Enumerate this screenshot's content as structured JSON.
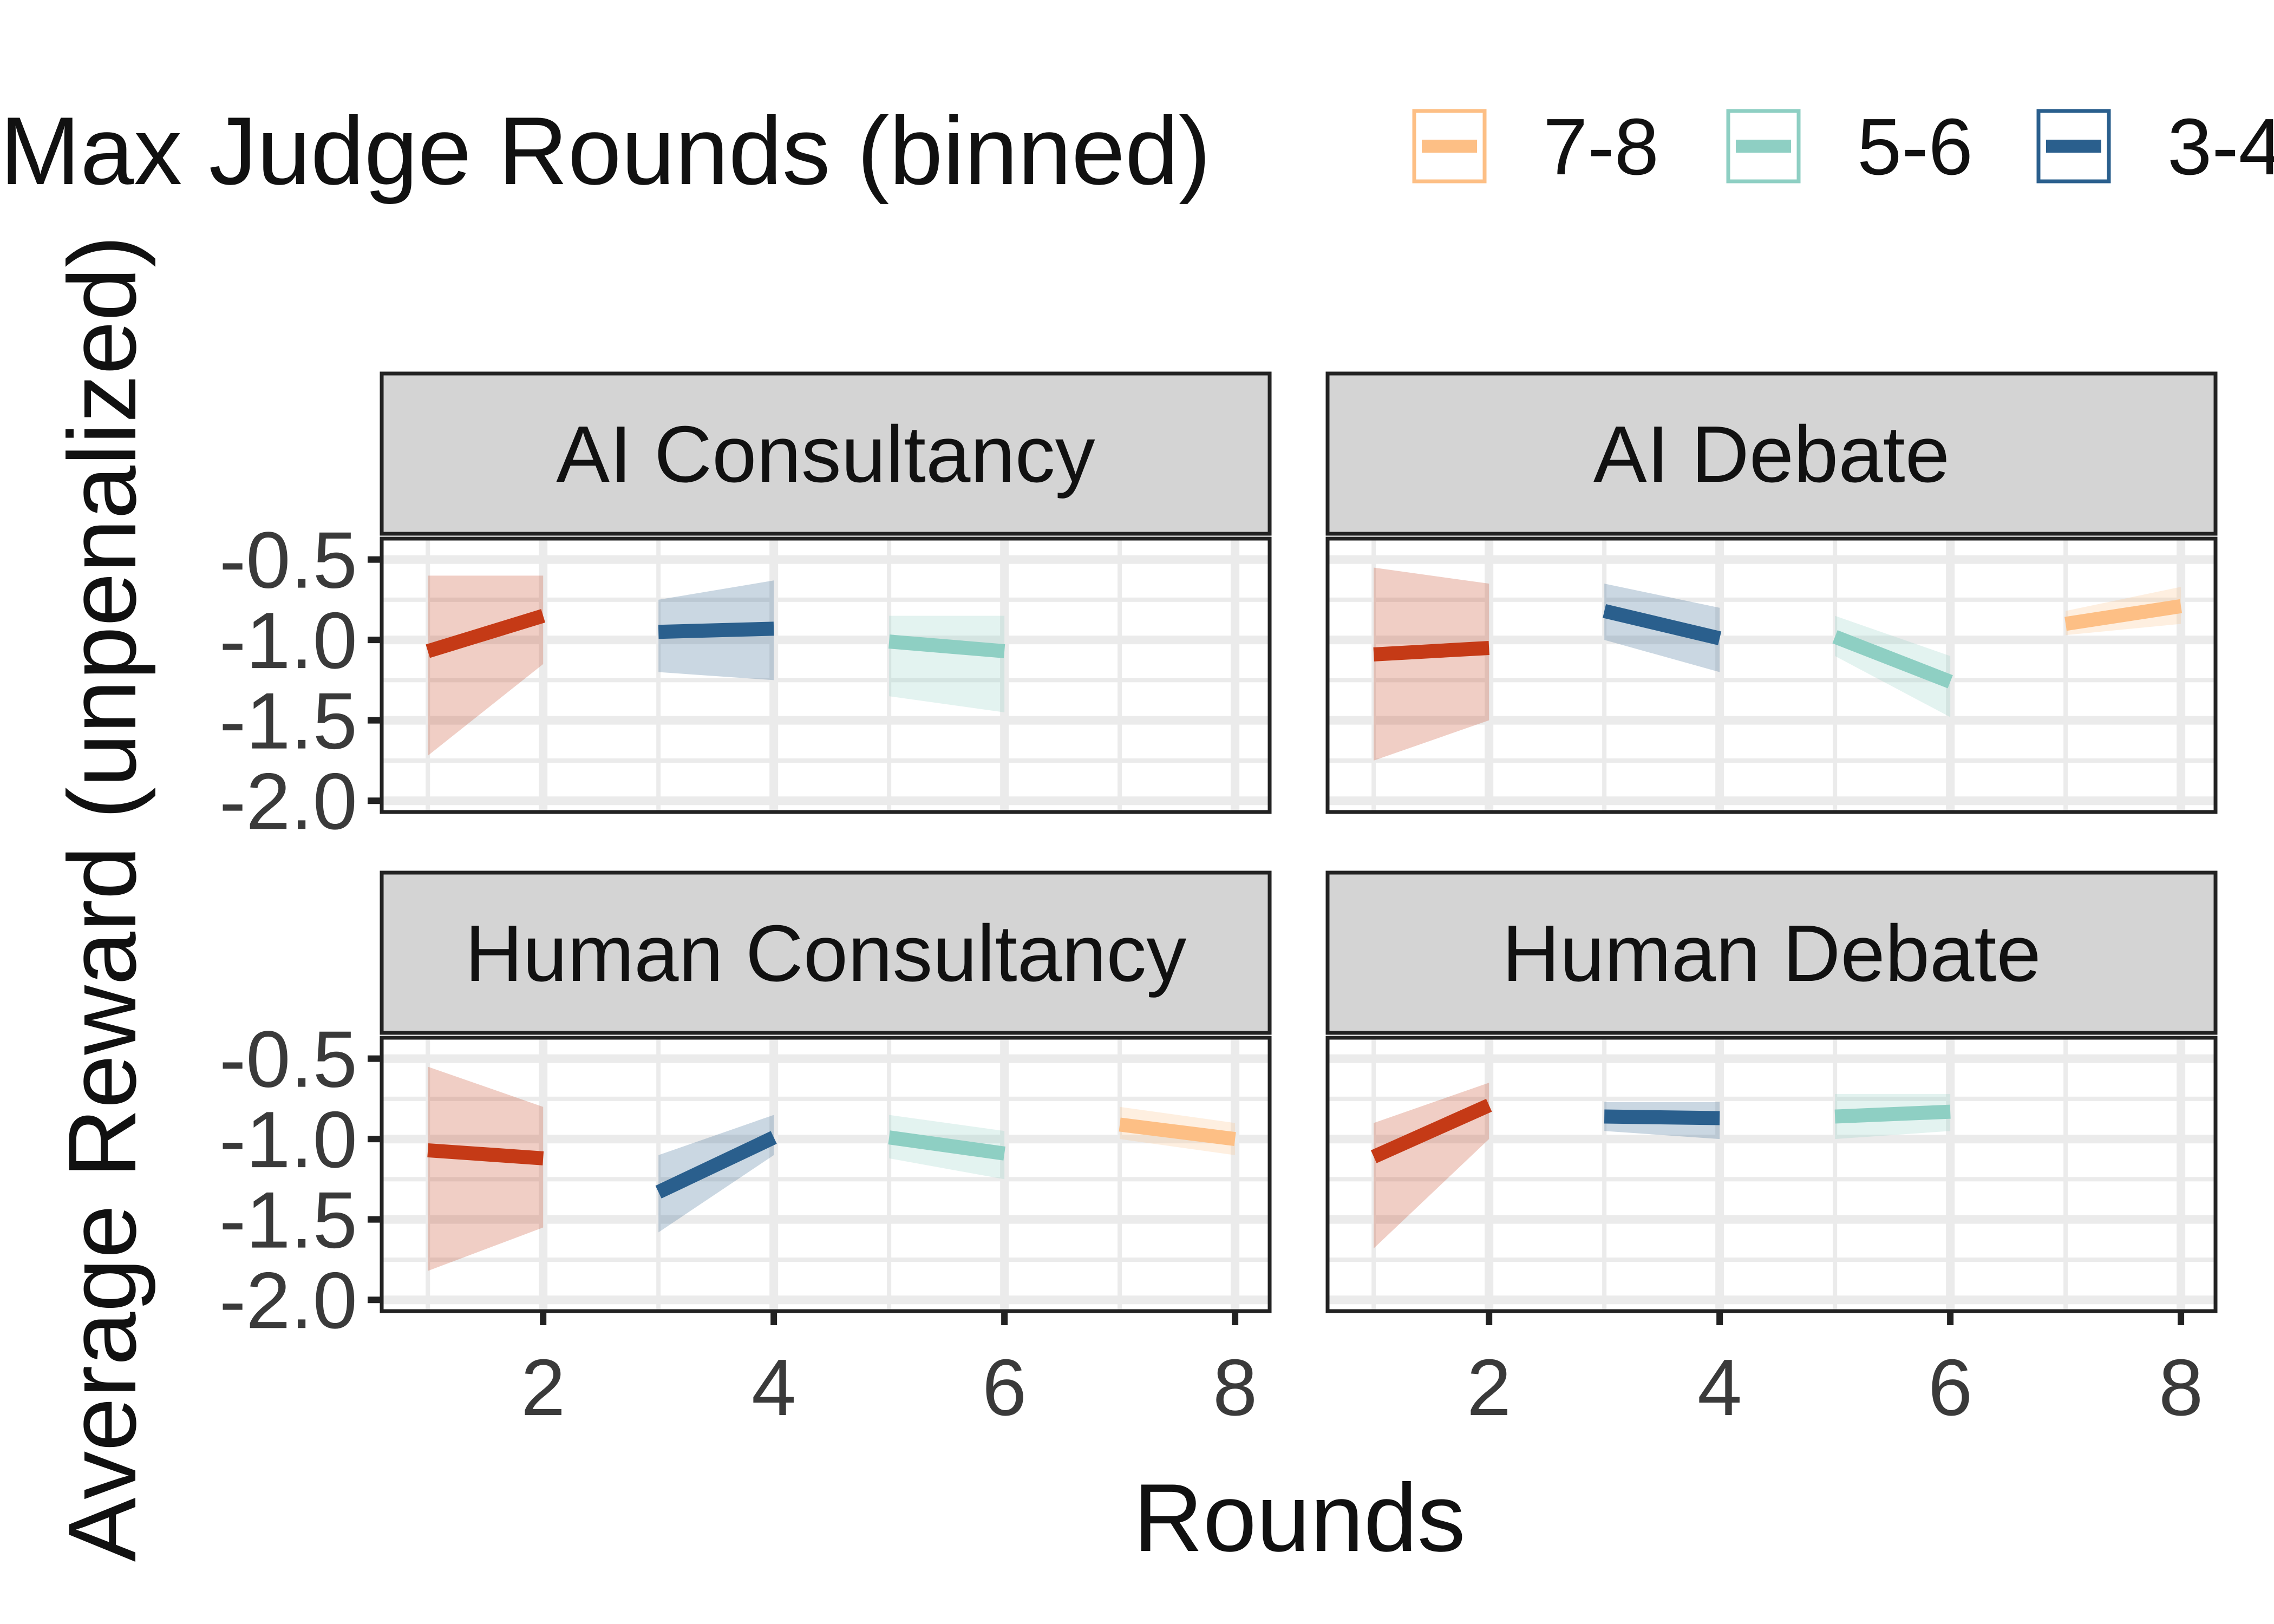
{
  "chart_data": {
    "type": "line",
    "xlabel": "Rounds",
    "ylabel": "Average Reward (unpenalized)",
    "xlim": [
      0.6,
      8.3
    ],
    "ylim": [
      -2.07,
      -0.37
    ],
    "x_ticks": [
      2,
      4,
      6,
      8
    ],
    "y_ticks": [
      -0.5,
      -1.0,
      -1.5,
      -2.0
    ],
    "y_tick_labels": [
      "-0.5",
      "-1.0",
      "-1.5",
      "-2.0"
    ],
    "grid": true,
    "legend": {
      "title": "Max Judge Rounds (binned)",
      "position": "top",
      "entries": [
        {
          "label": "7-8",
          "color": "#FDBF85"
        },
        {
          "label": "5-6",
          "color": "#8ECFC3"
        },
        {
          "label": "3-4",
          "color": "#2A5F8D"
        }
      ]
    },
    "panels": [
      {
        "title": "AI Consultancy",
        "series": [
          {
            "key": "1-2",
            "color": "#C53A16",
            "x": [
              1,
              2
            ],
            "y": [
              -1.07,
              -0.85
            ],
            "lower": [
              -1.72,
              -1.15
            ],
            "upper": [
              -0.6,
              -0.6
            ]
          },
          {
            "key": "3-4",
            "color": "#2A5F8D",
            "x": [
              3,
              4
            ],
            "y": [
              -0.95,
              -0.93
            ],
            "lower": [
              -1.2,
              -1.25
            ],
            "upper": [
              -0.75,
              -0.63
            ]
          },
          {
            "key": "5-6",
            "color": "#8ECFC3",
            "x": [
              5,
              6
            ],
            "y": [
              -1.01,
              -1.07
            ],
            "lower": [
              -1.35,
              -1.45
            ],
            "upper": [
              -0.85,
              -0.85
            ]
          }
        ]
      },
      {
        "title": "AI Debate",
        "series": [
          {
            "key": "1-2",
            "color": "#C53A16",
            "x": [
              1,
              2
            ],
            "y": [
              -1.09,
              -1.05
            ],
            "lower": [
              -1.75,
              -1.5
            ],
            "upper": [
              -0.55,
              -0.65
            ]
          },
          {
            "key": "3-4",
            "color": "#2A5F8D",
            "x": [
              3,
              4
            ],
            "y": [
              -0.82,
              -0.99
            ],
            "lower": [
              -1.0,
              -1.2
            ],
            "upper": [
              -0.65,
              -0.8
            ]
          },
          {
            "key": "5-6",
            "color": "#8ECFC3",
            "x": [
              5,
              6
            ],
            "y": [
              -0.98,
              -1.26
            ],
            "lower": [
              -1.1,
              -1.48
            ],
            "upper": [
              -0.85,
              -1.1
            ]
          },
          {
            "key": "7-8",
            "color": "#FDBF85",
            "x": [
              7,
              8
            ],
            "y": [
              -0.9,
              -0.79
            ],
            "lower": [
              -0.97,
              -0.9
            ],
            "upper": [
              -0.82,
              -0.67
            ]
          }
        ]
      },
      {
        "title": "Human Consultancy",
        "series": [
          {
            "key": "1-2",
            "color": "#C53A16",
            "x": [
              1,
              2
            ],
            "y": [
              -1.07,
              -1.12
            ],
            "lower": [
              -1.82,
              -1.55
            ],
            "upper": [
              -0.55,
              -0.8
            ]
          },
          {
            "key": "3-4",
            "color": "#2A5F8D",
            "x": [
              3,
              4
            ],
            "y": [
              -1.33,
              -0.99
            ],
            "lower": [
              -1.58,
              -1.1
            ],
            "upper": [
              -1.1,
              -0.85
            ]
          },
          {
            "key": "5-6",
            "color": "#8ECFC3",
            "x": [
              5,
              6
            ],
            "y": [
              -0.99,
              -1.09
            ],
            "lower": [
              -1.12,
              -1.25
            ],
            "upper": [
              -0.85,
              -0.95
            ]
          },
          {
            "key": "7-8",
            "color": "#FDBF85",
            "x": [
              7,
              8
            ],
            "y": [
              -0.91,
              -1.0
            ],
            "lower": [
              -1.0,
              -1.1
            ],
            "upper": [
              -0.8,
              -0.9
            ]
          }
        ]
      },
      {
        "title": "Human Debate",
        "series": [
          {
            "key": "1-2",
            "color": "#C53A16",
            "x": [
              1,
              2
            ],
            "y": [
              -1.11,
              -0.79
            ],
            "lower": [
              -1.68,
              -1.0
            ],
            "upper": [
              -0.9,
              -0.65
            ]
          },
          {
            "key": "3-4",
            "color": "#2A5F8D",
            "x": [
              3,
              4
            ],
            "y": [
              -0.86,
              -0.87
            ],
            "lower": [
              -0.95,
              -1.0
            ],
            "upper": [
              -0.77,
              -0.77
            ]
          },
          {
            "key": "5-6",
            "color": "#8ECFC3",
            "x": [
              5,
              6
            ],
            "y": [
              -0.86,
              -0.83
            ],
            "lower": [
              -1.0,
              -0.95
            ],
            "upper": [
              -0.72,
              -0.72
            ]
          }
        ]
      }
    ]
  }
}
